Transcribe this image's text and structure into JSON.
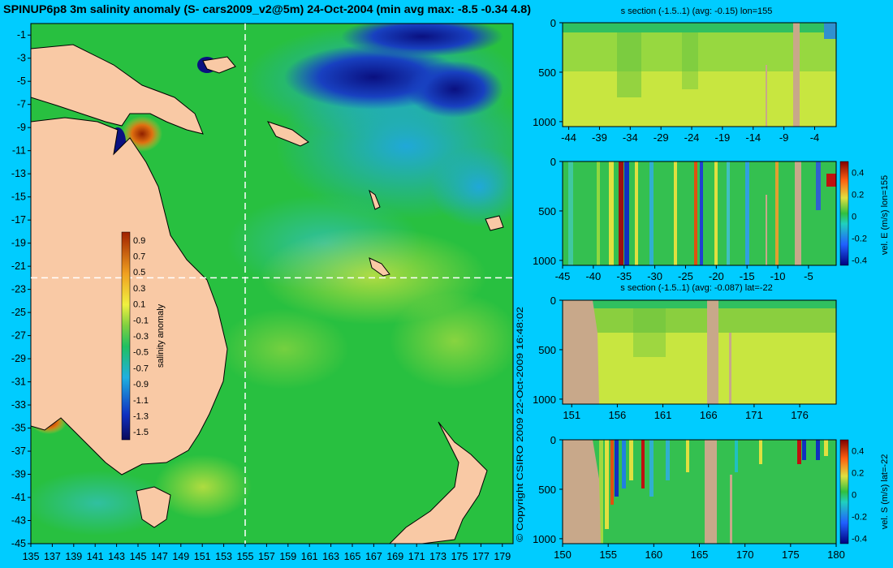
{
  "figure": {
    "title": "SPINUP6p8 3m salinity anomaly (S- cars2009_v2@5m) 24-Oct-2004 (min avg max: -8.5 -0.34 4.8)",
    "copyright": "© Copyright CSIRO 2009   22-Oct-2009 16:48:02",
    "background_color": "#00ccff",
    "land_color": "#f9c9a5",
    "section_land_color": "#c8a88a"
  },
  "chart_data": [
    {
      "type": "heatmap",
      "id": "map",
      "title": "SPINUP6p8 3m salinity anomaly (S- cars2009_v2@5m) 24-Oct-2004 (min avg max: -8.5 -0.34 4.8)",
      "x_ticks": [
        "135",
        "137",
        "139",
        "141",
        "143",
        "145",
        "147",
        "149",
        "151",
        "153",
        "155",
        "157",
        "159",
        "161",
        "163",
        "165",
        "167",
        "169",
        "171",
        "173",
        "175",
        "177",
        "179"
      ],
      "y_ticks": [
        "-1",
        "-3",
        "-5",
        "-7",
        "-9",
        "-11",
        "-13",
        "-15",
        "-17",
        "-19",
        "-21",
        "-23",
        "-25",
        "-27",
        "-29",
        "-31",
        "-33",
        "-35",
        "-37",
        "-39",
        "-41",
        "-43",
        "-45"
      ],
      "xlim": [
        135,
        180
      ],
      "ylim": [
        -45,
        0
      ],
      "section_line_lon": 155,
      "section_line_lat": -22,
      "colorbar": {
        "label": "salinity anomaly",
        "ticks": [
          "0.9",
          "0.7",
          "0.5",
          "0.3",
          "0.1",
          "-0.1",
          "-0.3",
          "-0.5",
          "-0.7",
          "-0.9",
          "-1.1",
          "-1.3",
          "-1.5"
        ],
        "range": [
          -1.6,
          1.0
        ]
      }
    },
    {
      "type": "heatmap",
      "id": "sec1",
      "title": "s section (-1.5..1) (avg: -0.15) lon=155",
      "x_ticks": [
        "-44",
        "-39",
        "-34",
        "-29",
        "-24",
        "-19",
        "-14",
        "-9",
        "-4"
      ],
      "y_ticks": [
        "0",
        "500",
        "1000"
      ],
      "xlim": [
        -45,
        -0.5
      ],
      "ylim": [
        1050,
        0
      ]
    },
    {
      "type": "heatmap",
      "id": "sec2",
      "title": "",
      "x_ticks": [
        "-45",
        "-40",
        "-35",
        "-30",
        "-25",
        "-20",
        "-15",
        "-10",
        "-5"
      ],
      "y_ticks": [
        "0",
        "500",
        "1000"
      ],
      "xlim": [
        -45,
        -0.5
      ],
      "ylim": [
        1050,
        0
      ],
      "colorbar": {
        "label": "vel. E (m/s) lon=155",
        "ticks": [
          "0.4",
          "0.2",
          "0",
          "-0.2",
          "-0.4"
        ],
        "range": [
          -0.45,
          0.5
        ]
      }
    },
    {
      "type": "heatmap",
      "id": "sec3",
      "title": "s section (-1.5..1) (avg: -0.087) lat=-22",
      "x_ticks": [
        "151",
        "156",
        "161",
        "166",
        "171",
        "176"
      ],
      "y_ticks": [
        "0",
        "500",
        "1000"
      ],
      "xlim": [
        150,
        180
      ],
      "ylim": [
        1050,
        0
      ]
    },
    {
      "type": "heatmap",
      "id": "sec4",
      "title": "",
      "x_ticks": [
        "150",
        "155",
        "160",
        "165",
        "170",
        "175",
        "180"
      ],
      "y_ticks": [
        "0",
        "500",
        "1000"
      ],
      "xlim": [
        150,
        180
      ],
      "ylim": [
        1050,
        0
      ],
      "colorbar": {
        "label": "vel. S (m/s) lat=-22",
        "ticks": [
          "0.4",
          "0.2",
          "0",
          "-0.2",
          "-0.4"
        ],
        "range": [
          -0.45,
          0.5
        ]
      }
    }
  ]
}
